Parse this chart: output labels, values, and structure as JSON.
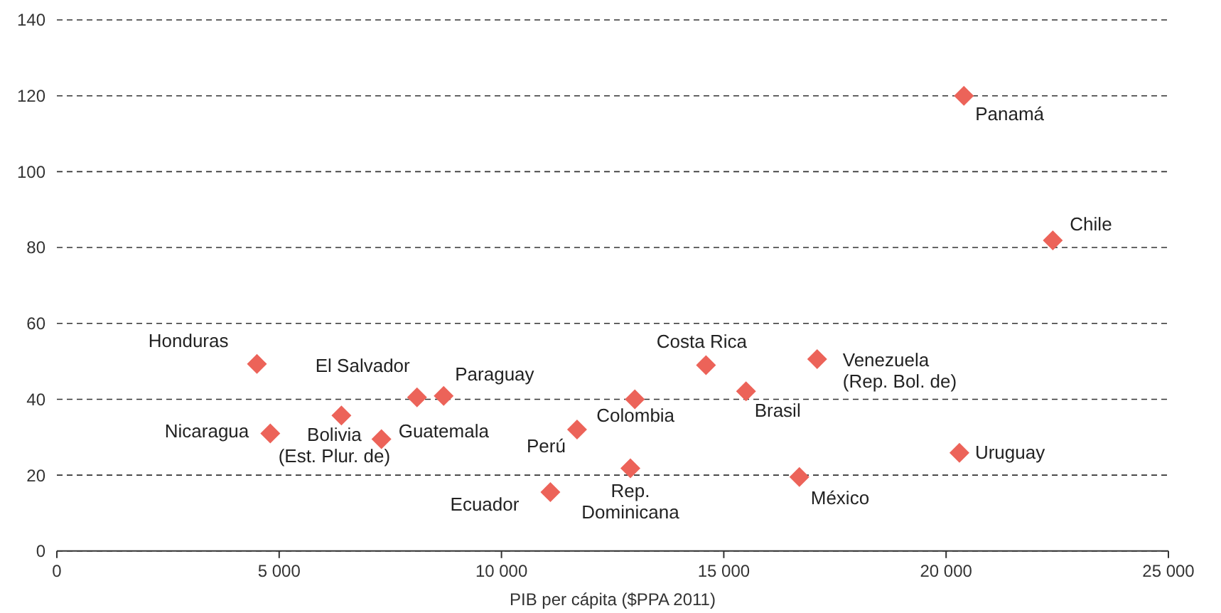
{
  "chart_data": {
    "type": "scatter",
    "xlabel": "PIB per cápita ($PPA 2011)",
    "xlim": [
      0,
      25000
    ],
    "xticks": [
      {
        "value": 0,
        "label": "0"
      },
      {
        "value": 5000,
        "label": "5 000"
      },
      {
        "value": 10000,
        "label": "10 000"
      },
      {
        "value": 15000,
        "label": "15 000"
      },
      {
        "value": 20000,
        "label": "20 000"
      },
      {
        "value": 25000,
        "label": "25 000"
      }
    ],
    "ylim": [
      0,
      140
    ],
    "yticks": [
      0,
      20,
      40,
      60,
      80,
      100,
      120,
      140
    ],
    "grid": "y",
    "marker": "diamond",
    "series": [
      {
        "color": "#ec6359",
        "x": [
          4500,
          4800,
          6400,
          7300,
          8100,
          8700,
          11100,
          11700,
          13000,
          12900,
          14600,
          15500,
          17100,
          16700,
          20400,
          22400,
          20300
        ],
        "values": [
          49.3,
          31.0,
          35.7,
          29.5,
          40.5,
          40.9,
          15.5,
          32.0,
          40.0,
          21.8,
          49.0,
          42.1,
          50.6,
          19.5,
          120,
          81.9,
          25.9
        ]
      }
    ],
    "annotations": [
      {
        "text": "Honduras",
        "x": 4500,
        "y": 49.3
      },
      {
        "text": "Nicaragua",
        "x": 4800,
        "y": 31.0
      },
      {
        "text": "Bolivia\n(Est. Plur. de)",
        "x": 6400,
        "y": 35.7
      },
      {
        "text": "Guatemala",
        "x": 7300,
        "y": 29.5
      },
      {
        "text": "El Salvador",
        "x": 8100,
        "y": 40.5
      },
      {
        "text": "Paraguay",
        "x": 8700,
        "y": 40.9
      },
      {
        "text": "Ecuador",
        "x": 11100,
        "y": 15.5
      },
      {
        "text": "Perú",
        "x": 11700,
        "y": 32.0
      },
      {
        "text": "Colombia",
        "x": 13000,
        "y": 40.0
      },
      {
        "text": "Rep.\nDominicana",
        "x": 12900,
        "y": 21.8
      },
      {
        "text": "Costa Rica",
        "x": 14600,
        "y": 49.0
      },
      {
        "text": "Brasil",
        "x": 15500,
        "y": 42.1
      },
      {
        "text": "Venezuela\n(Rep. Bol. de)",
        "x": 17100,
        "y": 50.6
      },
      {
        "text": "México",
        "x": 16700,
        "y": 19.5
      },
      {
        "text": "Panamá",
        "x": 20400,
        "y": 120
      },
      {
        "text": "Chile",
        "x": 22400,
        "y": 81.9
      },
      {
        "text": "Uruguay",
        "x": 20300,
        "y": 25.9
      }
    ]
  }
}
